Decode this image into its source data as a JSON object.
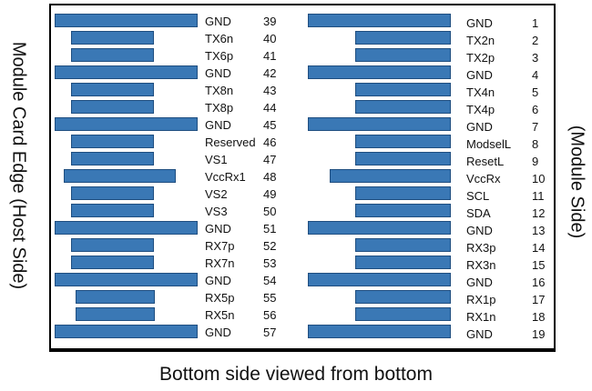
{
  "labels": {
    "host_side": "Module Card Edge (Host Side)",
    "module_side": "(Module Side)",
    "caption": "Bottom side viewed from bottom"
  },
  "colors": {
    "pad_fill": "#3a78b5",
    "pad_border": "#1f4e80",
    "frame": "#000000"
  },
  "left_pins": [
    {
      "signal": "GND",
      "num": "39"
    },
    {
      "signal": "TX6n",
      "num": "40"
    },
    {
      "signal": "TX6p",
      "num": "41"
    },
    {
      "signal": "GND",
      "num": "42"
    },
    {
      "signal": "TX8n",
      "num": "43"
    },
    {
      "signal": "TX8p",
      "num": "44"
    },
    {
      "signal": "GND",
      "num": "45"
    },
    {
      "signal": "Reserved",
      "num": "46"
    },
    {
      "signal": "VS1",
      "num": "47"
    },
    {
      "signal": "VccRx1",
      "num": "48"
    },
    {
      "signal": "VS2",
      "num": "49"
    },
    {
      "signal": "VS3",
      "num": "50"
    },
    {
      "signal": "GND",
      "num": "51"
    },
    {
      "signal": "RX7p",
      "num": "52"
    },
    {
      "signal": "RX7n",
      "num": "53"
    },
    {
      "signal": "GND",
      "num": "54"
    },
    {
      "signal": "RX5p",
      "num": "55"
    },
    {
      "signal": "RX5n",
      "num": "56"
    },
    {
      "signal": "GND",
      "num": "57"
    }
  ],
  "right_pins": [
    {
      "signal": "GND",
      "num": "1"
    },
    {
      "signal": "TX2n",
      "num": "2"
    },
    {
      "signal": "TX2p",
      "num": "3"
    },
    {
      "signal": "GND",
      "num": "4"
    },
    {
      "signal": "TX4n",
      "num": "5"
    },
    {
      "signal": "TX4p",
      "num": "6"
    },
    {
      "signal": "GND",
      "num": "7"
    },
    {
      "signal": "ModselL",
      "num": "8"
    },
    {
      "signal": "ResetL",
      "num": "9"
    },
    {
      "signal": "VccRx",
      "num": "10"
    },
    {
      "signal": "SCL",
      "num": "11"
    },
    {
      "signal": "SDA",
      "num": "12"
    },
    {
      "signal": "GND",
      "num": "13"
    },
    {
      "signal": "RX3p",
      "num": "14"
    },
    {
      "signal": "RX3n",
      "num": "15"
    },
    {
      "signal": "GND",
      "num": "16"
    },
    {
      "signal": "RX1p",
      "num": "17"
    },
    {
      "signal": "RX1n",
      "num": "18"
    },
    {
      "signal": "GND",
      "num": "19"
    }
  ]
}
